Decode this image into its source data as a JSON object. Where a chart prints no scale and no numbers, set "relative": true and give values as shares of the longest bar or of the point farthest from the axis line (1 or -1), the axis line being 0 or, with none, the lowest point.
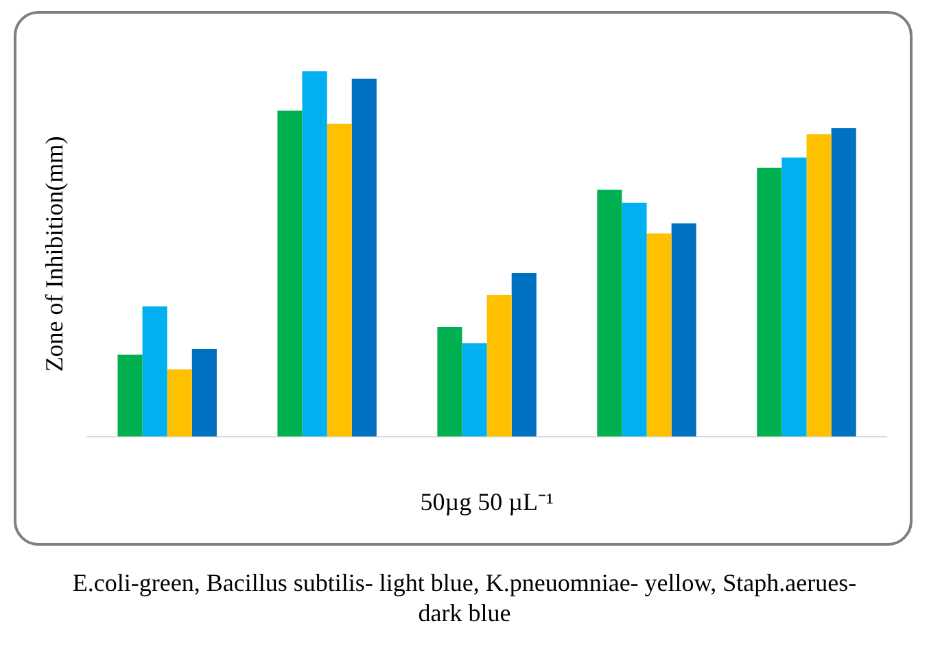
{
  "chart_data": {
    "type": "bar",
    "relative": true,
    "xlabel": "50µg 50 µL⁻¹",
    "ylabel": "Zone of Inhibition(mm)",
    "categories": [
      null,
      null,
      null,
      null,
      null
    ],
    "series": [
      {
        "color": "#00b050",
        "values": [
          0.224,
          0.892,
          0.3,
          0.676,
          0.736
        ]
      },
      {
        "color": "#00b0f0",
        "values": [
          0.356,
          1,
          0.256,
          0.64,
          0.764
        ]
      },
      {
        "color": "#ffc000",
        "values": [
          0.184,
          0.856,
          0.388,
          0.556,
          0.828
        ]
      },
      {
        "color": "#0070c0",
        "values": [
          0.24,
          0.98,
          0.448,
          0.584,
          0.844
        ]
      }
    ],
    "annotations": [
      "E.coli-green, Bacillus subtilis- light blue, K.pneuomniae- yellow, Staph.aerues- dark blue"
    ]
  }
}
